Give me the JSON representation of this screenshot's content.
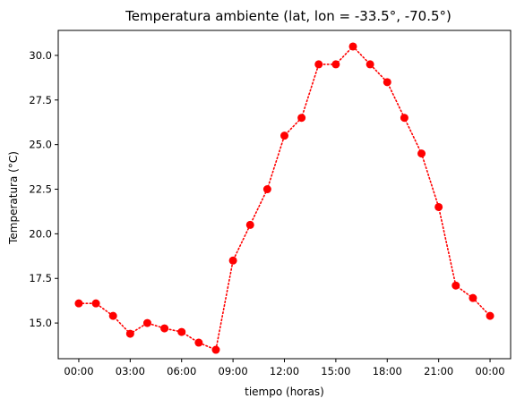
{
  "chart_data": {
    "type": "line",
    "title": "Temperatura ambiente (lat, lon = -33.5°, -70.5°)",
    "xlabel": "tiempo (horas)",
    "ylabel": "Temperatura (°C)",
    "x_tick_labels": [
      "00:00",
      "03:00",
      "06:00",
      "09:00",
      "12:00",
      "15:00",
      "18:00",
      "21:00",
      "00:00"
    ],
    "y_tick_labels": [
      "15.0",
      "17.5",
      "20.0",
      "22.5",
      "25.0",
      "27.5",
      "30.0"
    ],
    "xlim": [
      "00:00",
      "00:00"
    ],
    "ylim": [
      13.0,
      31.4
    ],
    "grid": false,
    "series": [
      {
        "color": "#ff0000",
        "line_style": "dotted",
        "marker": "circle",
        "x": [
          "00:00",
          "01:00",
          "02:00",
          "03:00",
          "04:00",
          "05:00",
          "06:00",
          "07:00",
          "08:00",
          "09:00",
          "10:00",
          "11:00",
          "12:00",
          "13:00",
          "14:00",
          "15:00",
          "16:00",
          "17:00",
          "18:00",
          "19:00",
          "20:00",
          "21:00",
          "22:00",
          "23:00",
          "00:00"
        ],
        "y": [
          16.1,
          16.1,
          15.4,
          14.4,
          15.0,
          14.7,
          14.5,
          13.9,
          13.5,
          18.5,
          20.5,
          22.5,
          25.5,
          26.5,
          29.5,
          29.5,
          30.5,
          29.5,
          28.5,
          26.5,
          24.5,
          21.5,
          17.1,
          16.4,
          15.4
        ]
      }
    ]
  }
}
